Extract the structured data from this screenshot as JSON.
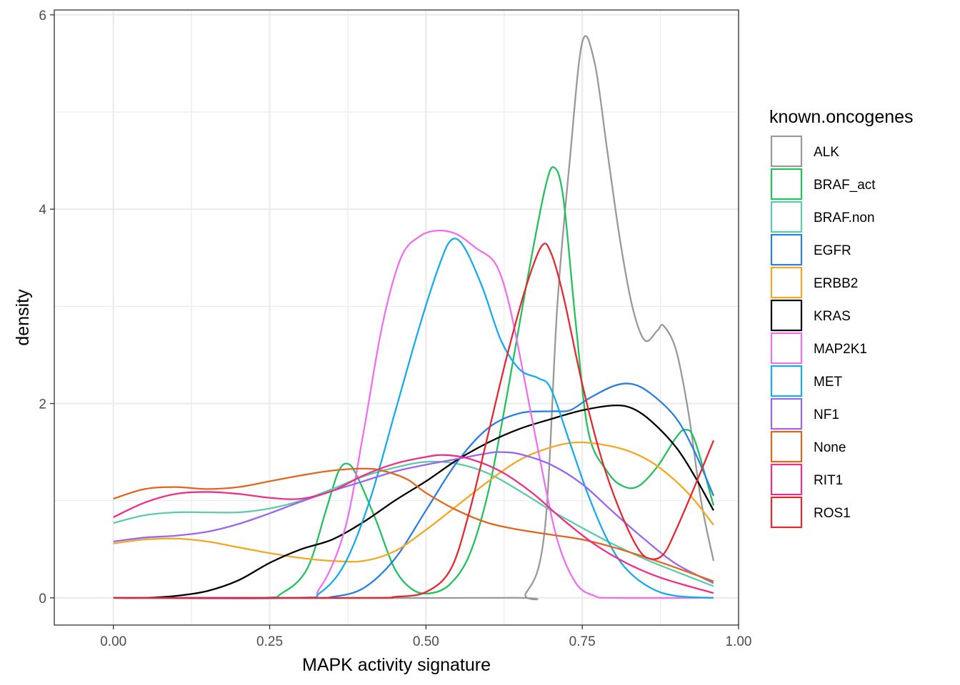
{
  "chart_data": {
    "type": "line",
    "title": "",
    "xlabel": "MAPK activity signature",
    "ylabel": "density",
    "xlim": [
      -0.0945,
      1.0
    ],
    "ylim": [
      -0.28,
      6.05
    ],
    "x_ticks": [
      {
        "value": 0.0,
        "label": "0.00"
      },
      {
        "value": 0.25,
        "label": "0.25"
      },
      {
        "value": 0.5,
        "label": "0.50"
      },
      {
        "value": 0.75,
        "label": "0.75"
      },
      {
        "value": 1.0,
        "label": "1.00"
      }
    ],
    "y_ticks": [
      {
        "value": 0,
        "label": "0"
      },
      {
        "value": 2,
        "label": "2"
      },
      {
        "value": 4,
        "label": "4"
      },
      {
        "value": 6,
        "label": "6"
      }
    ],
    "grid": true,
    "theme": "bw",
    "legend": {
      "title": "known.oncogenes",
      "position": "right"
    },
    "series": [
      {
        "name": "ALK",
        "color": "#999999",
        "points": [
          [
            0.0,
            0.0
          ],
          [
            0.62,
            0.0
          ],
          [
            0.66,
            0.05
          ],
          [
            0.69,
            0.7
          ],
          [
            0.71,
            3.0
          ],
          [
            0.73,
            4.5
          ],
          [
            0.75,
            5.72
          ],
          [
            0.77,
            5.5
          ],
          [
            0.79,
            4.6
          ],
          [
            0.81,
            3.7
          ],
          [
            0.83,
            3.0
          ],
          [
            0.85,
            2.65
          ],
          [
            0.87,
            2.75
          ],
          [
            0.88,
            2.8
          ],
          [
            0.9,
            2.55
          ],
          [
            0.92,
            1.9
          ],
          [
            0.94,
            1.0
          ],
          [
            0.96,
            0.38
          ]
        ]
      },
      {
        "name": "BRAF_act",
        "color": "#21C25C",
        "points": [
          [
            0.0,
            0.0
          ],
          [
            0.23,
            0.0
          ],
          [
            0.27,
            0.05
          ],
          [
            0.31,
            0.3
          ],
          [
            0.34,
            0.9
          ],
          [
            0.36,
            1.3
          ],
          [
            0.375,
            1.38
          ],
          [
            0.39,
            1.25
          ],
          [
            0.42,
            0.8
          ],
          [
            0.45,
            0.3
          ],
          [
            0.48,
            0.08
          ],
          [
            0.51,
            0.05
          ],
          [
            0.54,
            0.15
          ],
          [
            0.57,
            0.45
          ],
          [
            0.6,
            1.1
          ],
          [
            0.63,
            2.1
          ],
          [
            0.66,
            3.2
          ],
          [
            0.69,
            4.2
          ],
          [
            0.705,
            4.43
          ],
          [
            0.72,
            4.1
          ],
          [
            0.74,
            2.8
          ],
          [
            0.76,
            1.7
          ],
          [
            0.79,
            1.3
          ],
          [
            0.815,
            1.15
          ],
          [
            0.84,
            1.15
          ],
          [
            0.87,
            1.35
          ],
          [
            0.9,
            1.65
          ],
          [
            0.915,
            1.73
          ],
          [
            0.93,
            1.62
          ],
          [
            0.96,
            0.95
          ]
        ]
      },
      {
        "name": "BRAF.non",
        "color": "#5ECBA8",
        "points": [
          [
            0.0,
            0.77
          ],
          [
            0.05,
            0.85
          ],
          [
            0.1,
            0.88
          ],
          [
            0.15,
            0.88
          ],
          [
            0.2,
            0.88
          ],
          [
            0.25,
            0.92
          ],
          [
            0.3,
            1.0
          ],
          [
            0.35,
            1.12
          ],
          [
            0.4,
            1.25
          ],
          [
            0.45,
            1.34
          ],
          [
            0.5,
            1.4
          ],
          [
            0.55,
            1.38
          ],
          [
            0.6,
            1.28
          ],
          [
            0.65,
            1.1
          ],
          [
            0.7,
            0.9
          ],
          [
            0.75,
            0.72
          ],
          [
            0.8,
            0.55
          ],
          [
            0.85,
            0.4
          ],
          [
            0.9,
            0.27
          ],
          [
            0.96,
            0.12
          ]
        ]
      },
      {
        "name": "EGFR",
        "color": "#2C7FE0",
        "points": [
          [
            0.0,
            0.0
          ],
          [
            0.3,
            0.0
          ],
          [
            0.35,
            0.01
          ],
          [
            0.4,
            0.1
          ],
          [
            0.45,
            0.4
          ],
          [
            0.5,
            0.9
          ],
          [
            0.55,
            1.4
          ],
          [
            0.6,
            1.75
          ],
          [
            0.65,
            1.9
          ],
          [
            0.7,
            1.92
          ],
          [
            0.73,
            1.93
          ],
          [
            0.76,
            2.05
          ],
          [
            0.8,
            2.18
          ],
          [
            0.83,
            2.2
          ],
          [
            0.86,
            2.1
          ],
          [
            0.9,
            1.85
          ],
          [
            0.93,
            1.5
          ],
          [
            0.96,
            1.05
          ]
        ]
      },
      {
        "name": "ERBB2",
        "color": "#F4A821",
        "points": [
          [
            0.0,
            0.56
          ],
          [
            0.05,
            0.6
          ],
          [
            0.1,
            0.61
          ],
          [
            0.15,
            0.58
          ],
          [
            0.2,
            0.52
          ],
          [
            0.25,
            0.46
          ],
          [
            0.3,
            0.41
          ],
          [
            0.35,
            0.38
          ],
          [
            0.4,
            0.38
          ],
          [
            0.45,
            0.48
          ],
          [
            0.5,
            0.7
          ],
          [
            0.55,
            0.95
          ],
          [
            0.6,
            1.2
          ],
          [
            0.65,
            1.42
          ],
          [
            0.7,
            1.55
          ],
          [
            0.74,
            1.6
          ],
          [
            0.78,
            1.58
          ],
          [
            0.82,
            1.52
          ],
          [
            0.86,
            1.4
          ],
          [
            0.9,
            1.2
          ],
          [
            0.93,
            1.0
          ],
          [
            0.96,
            0.75
          ]
        ]
      },
      {
        "name": "KRAS",
        "color": "#000000",
        "points": [
          [
            0.0,
            0.0
          ],
          [
            0.05,
            0.0
          ],
          [
            0.1,
            0.02
          ],
          [
            0.15,
            0.07
          ],
          [
            0.2,
            0.18
          ],
          [
            0.25,
            0.36
          ],
          [
            0.3,
            0.5
          ],
          [
            0.35,
            0.6
          ],
          [
            0.4,
            0.78
          ],
          [
            0.45,
            1.0
          ],
          [
            0.5,
            1.2
          ],
          [
            0.55,
            1.42
          ],
          [
            0.6,
            1.6
          ],
          [
            0.65,
            1.74
          ],
          [
            0.7,
            1.84
          ],
          [
            0.75,
            1.93
          ],
          [
            0.8,
            1.98
          ],
          [
            0.83,
            1.95
          ],
          [
            0.86,
            1.82
          ],
          [
            0.9,
            1.55
          ],
          [
            0.93,
            1.25
          ],
          [
            0.96,
            0.9
          ]
        ]
      },
      {
        "name": "MAP2K1",
        "color": "#F06EF0",
        "points": [
          [
            0.0,
            0.0
          ],
          [
            0.29,
            0.0
          ],
          [
            0.33,
            0.1
          ],
          [
            0.37,
            0.7
          ],
          [
            0.4,
            1.7
          ],
          [
            0.43,
            2.8
          ],
          [
            0.46,
            3.5
          ],
          [
            0.49,
            3.72
          ],
          [
            0.52,
            3.78
          ],
          [
            0.55,
            3.74
          ],
          [
            0.58,
            3.6
          ],
          [
            0.61,
            3.45
          ],
          [
            0.63,
            3.1
          ],
          [
            0.65,
            2.5
          ],
          [
            0.68,
            1.5
          ],
          [
            0.71,
            0.6
          ],
          [
            0.74,
            0.15
          ],
          [
            0.77,
            0.02
          ],
          [
            0.8,
            0.0
          ],
          [
            0.96,
            0.0
          ]
        ]
      },
      {
        "name": "MET",
        "color": "#16AAEE",
        "points": [
          [
            0.0,
            0.0
          ],
          [
            0.29,
            0.0
          ],
          [
            0.33,
            0.05
          ],
          [
            0.37,
            0.35
          ],
          [
            0.41,
            1.0
          ],
          [
            0.45,
            1.9
          ],
          [
            0.49,
            2.8
          ],
          [
            0.52,
            3.4
          ],
          [
            0.54,
            3.68
          ],
          [
            0.56,
            3.62
          ],
          [
            0.59,
            3.2
          ],
          [
            0.62,
            2.65
          ],
          [
            0.65,
            2.35
          ],
          [
            0.68,
            2.26
          ],
          [
            0.7,
            2.15
          ],
          [
            0.73,
            1.6
          ],
          [
            0.76,
            1.05
          ],
          [
            0.79,
            0.6
          ],
          [
            0.82,
            0.3
          ],
          [
            0.86,
            0.1
          ],
          [
            0.9,
            0.02
          ],
          [
            0.96,
            0.0
          ]
        ]
      },
      {
        "name": "NF1",
        "color": "#9966F0",
        "points": [
          [
            0.0,
            0.58
          ],
          [
            0.05,
            0.62
          ],
          [
            0.1,
            0.64
          ],
          [
            0.15,
            0.68
          ],
          [
            0.2,
            0.76
          ],
          [
            0.25,
            0.87
          ],
          [
            0.3,
            0.99
          ],
          [
            0.35,
            1.1
          ],
          [
            0.4,
            1.2
          ],
          [
            0.45,
            1.3
          ],
          [
            0.5,
            1.37
          ],
          [
            0.55,
            1.43
          ],
          [
            0.6,
            1.49
          ],
          [
            0.62,
            1.5
          ],
          [
            0.65,
            1.48
          ],
          [
            0.7,
            1.37
          ],
          [
            0.75,
            1.17
          ],
          [
            0.8,
            0.88
          ],
          [
            0.85,
            0.6
          ],
          [
            0.9,
            0.35
          ],
          [
            0.96,
            0.15
          ]
        ]
      },
      {
        "name": "None",
        "color": "#E0661E",
        "points": [
          [
            0.0,
            1.02
          ],
          [
            0.05,
            1.12
          ],
          [
            0.1,
            1.14
          ],
          [
            0.15,
            1.12
          ],
          [
            0.2,
            1.14
          ],
          [
            0.25,
            1.2
          ],
          [
            0.3,
            1.26
          ],
          [
            0.35,
            1.31
          ],
          [
            0.4,
            1.33
          ],
          [
            0.43,
            1.31
          ],
          [
            0.47,
            1.22
          ],
          [
            0.5,
            1.08
          ],
          [
            0.55,
            0.9
          ],
          [
            0.6,
            0.77
          ],
          [
            0.65,
            0.7
          ],
          [
            0.7,
            0.65
          ],
          [
            0.75,
            0.6
          ],
          [
            0.8,
            0.52
          ],
          [
            0.85,
            0.42
          ],
          [
            0.9,
            0.31
          ],
          [
            0.96,
            0.17
          ]
        ]
      },
      {
        "name": "RIT1",
        "color": "#EE2F88",
        "points": [
          [
            0.0,
            0.83
          ],
          [
            0.05,
            0.98
          ],
          [
            0.1,
            1.07
          ],
          [
            0.15,
            1.09
          ],
          [
            0.2,
            1.07
          ],
          [
            0.25,
            1.03
          ],
          [
            0.3,
            1.02
          ],
          [
            0.35,
            1.1
          ],
          [
            0.4,
            1.26
          ],
          [
            0.45,
            1.38
          ],
          [
            0.5,
            1.45
          ],
          [
            0.53,
            1.47
          ],
          [
            0.57,
            1.43
          ],
          [
            0.62,
            1.3
          ],
          [
            0.67,
            1.08
          ],
          [
            0.72,
            0.8
          ],
          [
            0.77,
            0.55
          ],
          [
            0.82,
            0.36
          ],
          [
            0.87,
            0.22
          ],
          [
            0.92,
            0.12
          ],
          [
            0.96,
            0.05
          ]
        ]
      },
      {
        "name": "ROS1",
        "color": "#E22931",
        "points": [
          [
            0.0,
            0.0
          ],
          [
            0.4,
            0.0
          ],
          [
            0.45,
            0.01
          ],
          [
            0.5,
            0.06
          ],
          [
            0.54,
            0.3
          ],
          [
            0.57,
            0.9
          ],
          [
            0.6,
            1.7
          ],
          [
            0.63,
            2.5
          ],
          [
            0.66,
            3.2
          ],
          [
            0.685,
            3.62
          ],
          [
            0.7,
            3.55
          ],
          [
            0.72,
            3.1
          ],
          [
            0.75,
            2.2
          ],
          [
            0.78,
            1.45
          ],
          [
            0.81,
            0.9
          ],
          [
            0.84,
            0.5
          ],
          [
            0.86,
            0.4
          ],
          [
            0.88,
            0.45
          ],
          [
            0.9,
            0.7
          ],
          [
            0.93,
            1.15
          ],
          [
            0.96,
            1.62
          ]
        ]
      }
    ]
  }
}
